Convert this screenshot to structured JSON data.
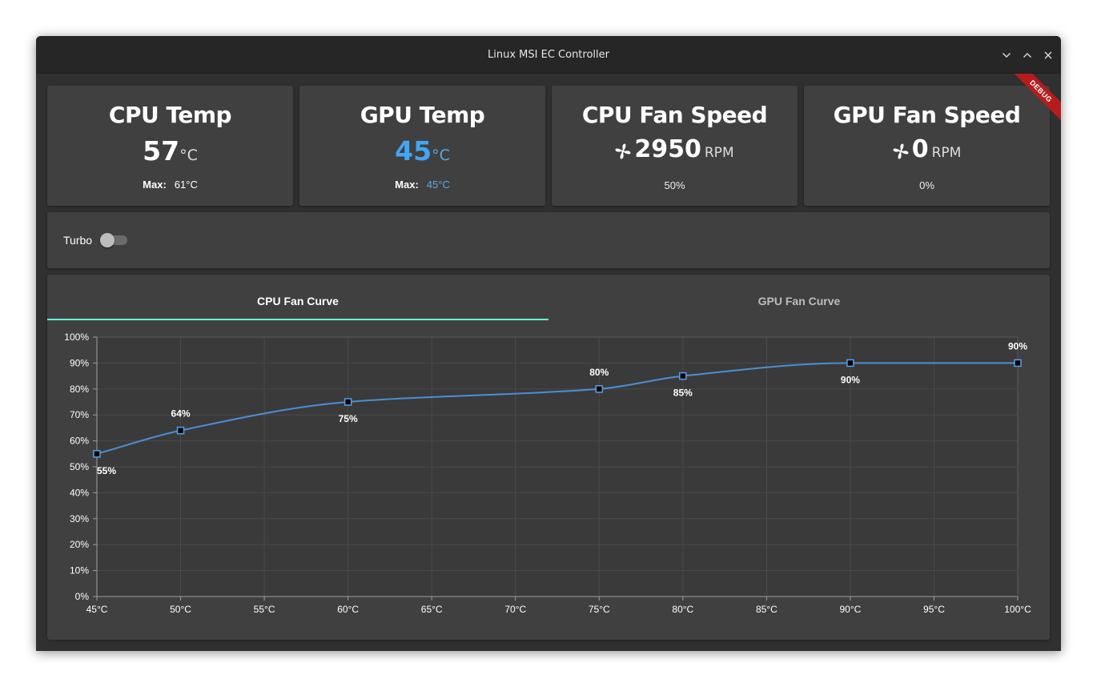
{
  "window": {
    "title": "Linux MSI EC Controller"
  },
  "window_controls": {
    "minimize": "minimize",
    "maximize": "maximize",
    "close": "close"
  },
  "colors": {
    "accent_teal": "#64ffda",
    "gpu_blue": "#42a5f5",
    "curve": "#4a8fd6",
    "debug": "#b71c1c"
  },
  "debug_banner": "DEBUG",
  "cpu_temp": {
    "title": "CPU Temp",
    "value": "57",
    "unit": "°C",
    "max_label": "Max:",
    "max_value": "61°C"
  },
  "gpu_temp": {
    "title": "GPU Temp",
    "value": "45",
    "unit": "°C",
    "max_label": "Max:",
    "max_value": "45°C"
  },
  "cpu_fan": {
    "title": "CPU Fan Speed",
    "icon": "fan-icon",
    "value": "2950",
    "unit": "RPM",
    "percent": "50%"
  },
  "gpu_fan": {
    "title": "GPU Fan Speed",
    "icon": "fan-icon",
    "value": "0",
    "unit": "RPM",
    "percent": "0%"
  },
  "turbo": {
    "label": "Turbo",
    "enabled": false
  },
  "tabs": [
    {
      "label": "CPU Fan Curve",
      "active": true
    },
    {
      "label": "GPU Fan Curve",
      "active": false
    }
  ],
  "chart_data": {
    "type": "line",
    "x": [
      45,
      50,
      60,
      75,
      80,
      90,
      100
    ],
    "values": [
      55,
      64,
      75,
      80,
      85,
      90,
      90
    ],
    "data_labels": [
      "55%",
      "64%",
      "75%",
      "80%",
      "85%",
      "90%",
      "90%"
    ],
    "label_side": [
      "below",
      "above",
      "below",
      "above",
      "below",
      "below",
      "above"
    ],
    "xlim": [
      45,
      100
    ],
    "ylim": [
      0,
      100
    ],
    "x_ticks": [
      "45°C",
      "50°C",
      "55°C",
      "60°C",
      "65°C",
      "70°C",
      "75°C",
      "80°C",
      "85°C",
      "90°C",
      "95°C",
      "100°C"
    ],
    "y_ticks": [
      "0%",
      "10%",
      "20%",
      "30%",
      "40%",
      "50%",
      "60%",
      "70%",
      "80%",
      "90%",
      "100%"
    ],
    "grid": true,
    "smooth": true
  }
}
